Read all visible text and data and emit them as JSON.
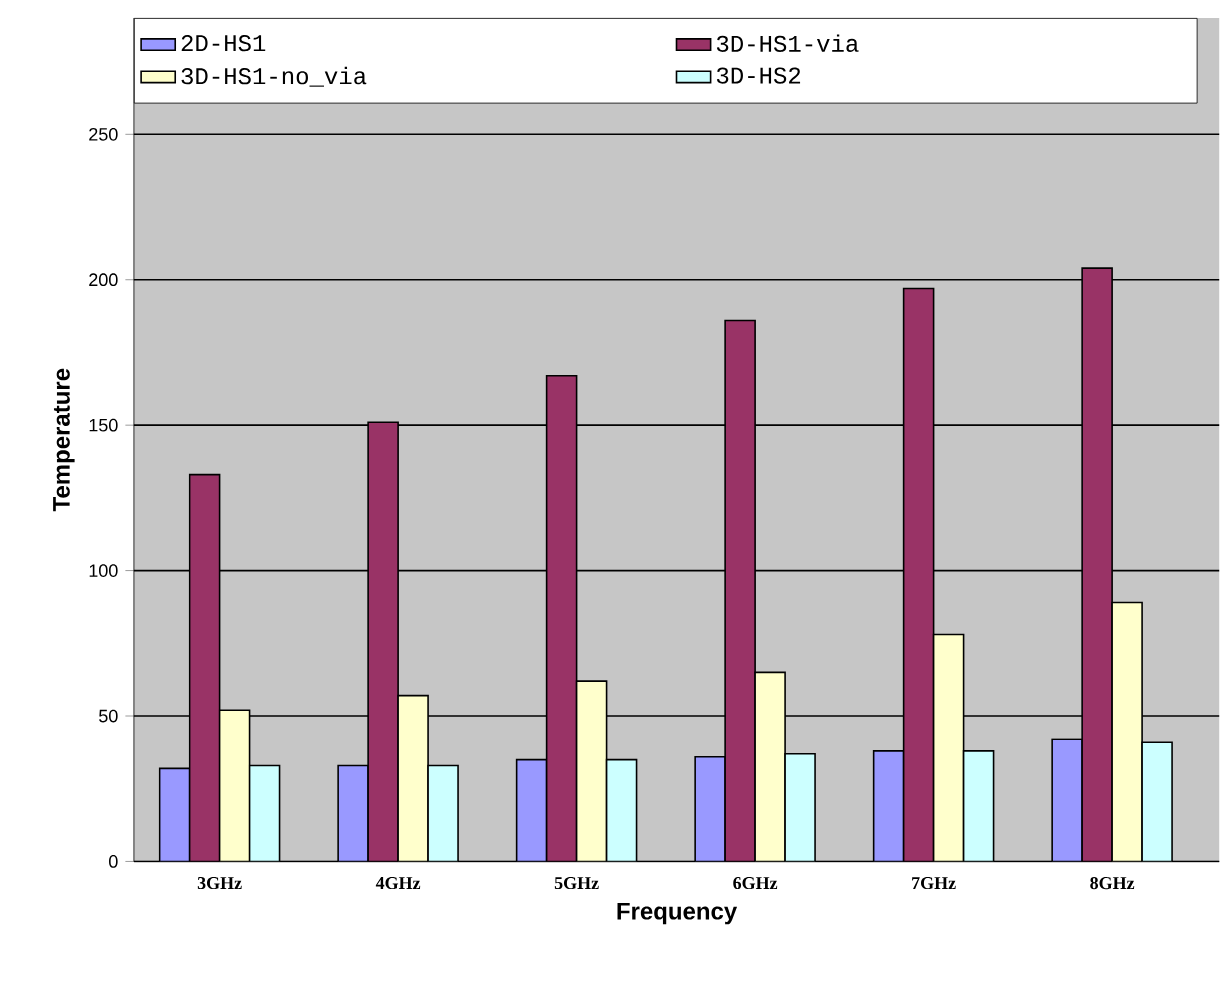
{
  "chart_data": {
    "type": "bar",
    "xlabel": "Frequency",
    "ylabel": "Temperature",
    "categories": [
      "3GHz",
      "4GHz",
      "5GHz",
      "6GHz",
      "7GHz",
      "8GHz"
    ],
    "series": [
      {
        "name": "2D-HS1",
        "color": "#9999ff",
        "values": [
          32,
          33,
          35,
          36,
          38,
          42
        ]
      },
      {
        "name": "3D-HS1-via",
        "color": "#993366",
        "values": [
          133,
          151,
          167,
          186,
          197,
          204
        ]
      },
      {
        "name": "3D-HS1-no_via",
        "color": "#ffffcc",
        "values": [
          52,
          57,
          62,
          65,
          78,
          89
        ]
      },
      {
        "name": "3D-HS2",
        "color": "#ccffff",
        "values": [
          33,
          33,
          35,
          37,
          38,
          41
        ]
      }
    ],
    "ylim": [
      0,
      290
    ],
    "yticks": [
      0,
      50,
      100,
      150,
      200,
      250
    ],
    "grid": "y",
    "legend": "top"
  }
}
